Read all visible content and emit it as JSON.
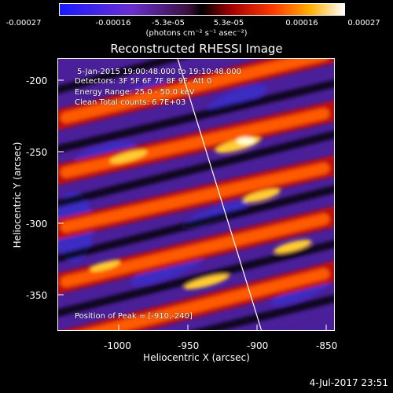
{
  "colorbar": {
    "ticks": [
      "-0.00027",
      "-0.00016",
      "-5.3e-05",
      "5.3e-05",
      "0.00016",
      "0.00027"
    ],
    "unit": "(photons cm⁻² s⁻¹ asec⁻²)"
  },
  "image": {
    "title": "Reconstructed RHESSI Image",
    "annotations": {
      "time_range": "5-Jan-2015 19:00:48.000 to 19:10:48.000",
      "detectors": "Detectors: 3F 5F 6F 7F 8F 9F, Att 0",
      "energy": "Energy Range: 25.0 - 50.0 keV",
      "algorithm": "Clean     Total counts: 6.7E+03",
      "peak": "Position of Peak = [-910,-240]"
    },
    "x_axis": {
      "label": "Heliocentric X (arcsec)",
      "ticks": [
        "-1000",
        "-950",
        "-900",
        "-850"
      ]
    },
    "y_axis": {
      "label": "Heliocentric Y (arcsec)",
      "ticks": [
        "-200",
        "-250",
        "-300",
        "-350"
      ]
    },
    "timestamp": "4-Jul-2017 23:51"
  }
}
